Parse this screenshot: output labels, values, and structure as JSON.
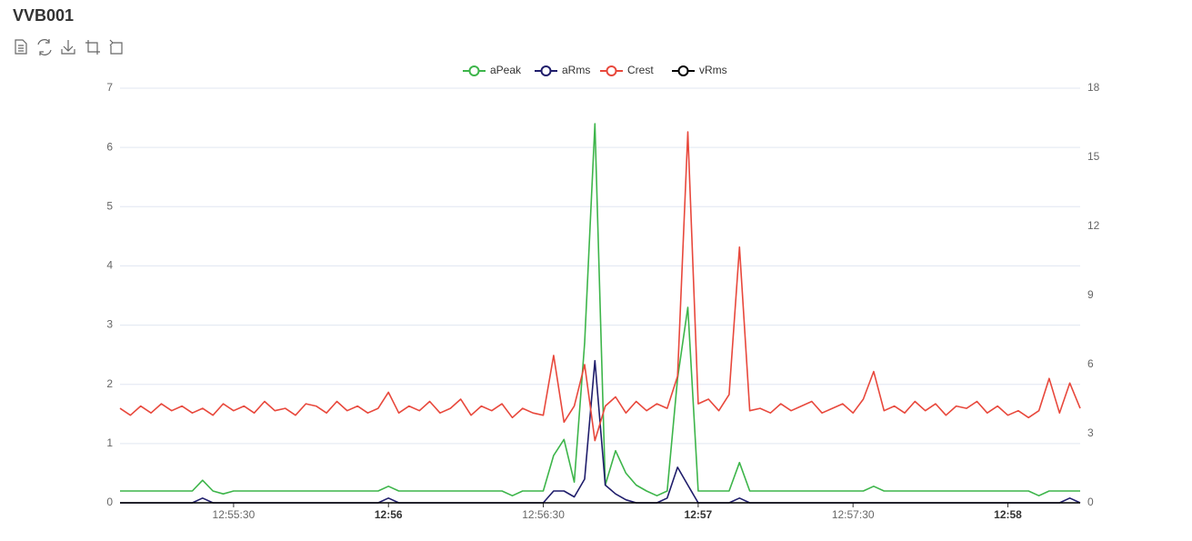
{
  "chart_data": {
    "type": "line",
    "title": "VVB001",
    "x": [
      "12:55:08",
      "12:55:10",
      "12:55:12",
      "12:55:14",
      "12:55:16",
      "12:55:18",
      "12:55:20",
      "12:55:22",
      "12:55:24",
      "12:55:26",
      "12:55:28",
      "12:55:30",
      "12:55:32",
      "12:55:34",
      "12:55:36",
      "12:55:38",
      "12:55:40",
      "12:55:42",
      "12:55:44",
      "12:55:46",
      "12:55:48",
      "12:55:50",
      "12:55:52",
      "12:55:54",
      "12:55:56",
      "12:55:58",
      "12:56:00",
      "12:56:02",
      "12:56:04",
      "12:56:06",
      "12:56:08",
      "12:56:10",
      "12:56:12",
      "12:56:14",
      "12:56:16",
      "12:56:18",
      "12:56:20",
      "12:56:22",
      "12:56:24",
      "12:56:26",
      "12:56:28",
      "12:56:30",
      "12:56:32",
      "12:56:34",
      "12:56:36",
      "12:56:38",
      "12:56:40",
      "12:56:42",
      "12:56:44",
      "12:56:46",
      "12:56:48",
      "12:56:50",
      "12:56:52",
      "12:56:54",
      "12:56:56",
      "12:56:58",
      "12:57:00",
      "12:57:02",
      "12:57:04",
      "12:57:06",
      "12:57:08",
      "12:57:10",
      "12:57:12",
      "12:57:14",
      "12:57:16",
      "12:57:18",
      "12:57:20",
      "12:57:22",
      "12:57:24",
      "12:57:26",
      "12:57:28",
      "12:57:30",
      "12:57:32",
      "12:57:34",
      "12:57:36",
      "12:57:38",
      "12:57:40",
      "12:57:42",
      "12:57:44",
      "12:57:46",
      "12:57:48",
      "12:57:50",
      "12:57:52",
      "12:57:54",
      "12:57:56",
      "12:57:58",
      "12:58:00",
      "12:58:02",
      "12:58:04",
      "12:58:06",
      "12:58:08",
      "12:58:10",
      "12:58:12",
      "12:58:14"
    ],
    "series": [
      {
        "name": "aPeak",
        "color": "#3db54a",
        "axis": "y",
        "values": [
          0.2,
          0.2,
          0.2,
          0.2,
          0.2,
          0.2,
          0.2,
          0.2,
          0.38,
          0.2,
          0.15,
          0.2,
          0.2,
          0.2,
          0.2,
          0.2,
          0.2,
          0.2,
          0.2,
          0.2,
          0.2,
          0.2,
          0.2,
          0.2,
          0.2,
          0.2,
          0.28,
          0.2,
          0.2,
          0.2,
          0.2,
          0.2,
          0.2,
          0.2,
          0.2,
          0.2,
          0.2,
          0.2,
          0.12,
          0.2,
          0.2,
          0.2,
          0.8,
          1.07,
          0.35,
          2.7,
          6.4,
          0.3,
          0.88,
          0.5,
          0.3,
          0.2,
          0.12,
          0.2,
          2.1,
          3.3,
          0.2,
          0.2,
          0.2,
          0.2,
          0.68,
          0.2,
          0.2,
          0.2,
          0.2,
          0.2,
          0.2,
          0.2,
          0.2,
          0.2,
          0.2,
          0.2,
          0.2,
          0.28,
          0.2,
          0.2,
          0.2,
          0.2,
          0.2,
          0.2,
          0.2,
          0.2,
          0.2,
          0.2,
          0.2,
          0.2,
          0.2,
          0.2,
          0.2,
          0.12,
          0.2,
          0.2,
          0.2,
          0.2
        ]
      },
      {
        "name": "aRms",
        "color": "#1f1d6b",
        "axis": "y",
        "values": [
          0,
          0,
          0,
          0,
          0,
          0,
          0,
          0,
          0.08,
          0,
          0,
          0,
          0,
          0,
          0,
          0,
          0,
          0,
          0,
          0,
          0,
          0,
          0,
          0,
          0,
          0,
          0.08,
          0,
          0,
          0,
          0,
          0,
          0,
          0,
          0,
          0,
          0,
          0,
          0,
          0,
          0,
          0,
          0.2,
          0.2,
          0.1,
          0.4,
          2.4,
          0.3,
          0.15,
          0.05,
          0,
          0,
          0,
          0.08,
          0.6,
          0.3,
          0,
          0,
          0,
          0,
          0.08,
          0,
          0,
          0,
          0,
          0,
          0,
          0,
          0,
          0,
          0,
          0,
          0,
          0,
          0,
          0,
          0,
          0,
          0,
          0,
          0,
          0,
          0,
          0,
          0,
          0,
          0,
          0,
          0,
          0,
          0,
          0,
          0.08,
          0
        ]
      },
      {
        "name": "Crest",
        "color": "#e8483c",
        "axis": "y2",
        "values": [
          4.1,
          3.8,
          4.2,
          3.9,
          4.3,
          4.0,
          4.2,
          3.9,
          4.1,
          3.8,
          4.3,
          4.0,
          4.2,
          3.9,
          4.4,
          4.0,
          4.1,
          3.8,
          4.3,
          4.2,
          3.9,
          4.4,
          4.0,
          4.2,
          3.9,
          4.1,
          4.8,
          3.9,
          4.2,
          4.0,
          4.4,
          3.9,
          4.1,
          4.5,
          3.8,
          4.2,
          4.0,
          4.3,
          3.7,
          4.1,
          3.9,
          3.8,
          6.4,
          3.5,
          4.2,
          6.0,
          2.7,
          4.2,
          4.6,
          3.9,
          4.4,
          4.0,
          4.3,
          4.1,
          5.5,
          16.1,
          4.3,
          4.5,
          4.0,
          4.7,
          11.1,
          4.0,
          4.1,
          3.9,
          4.3,
          4.0,
          4.2,
          4.4,
          3.9,
          4.1,
          4.3,
          3.9,
          4.5,
          5.7,
          4.0,
          4.2,
          3.9,
          4.4,
          4.0,
          4.3,
          3.8,
          4.2,
          4.1,
          4.4,
          3.9,
          4.2,
          3.8,
          4.0,
          3.7,
          4.0,
          5.4,
          3.9,
          5.2,
          4.1
        ]
      },
      {
        "name": "vRms",
        "color": "#000000",
        "axis": "y",
        "values": [
          0,
          0,
          0,
          0,
          0,
          0,
          0,
          0,
          0,
          0,
          0,
          0,
          0,
          0,
          0,
          0,
          0,
          0,
          0,
          0,
          0,
          0,
          0,
          0,
          0,
          0,
          0,
          0,
          0,
          0,
          0,
          0,
          0,
          0,
          0,
          0,
          0,
          0,
          0,
          0,
          0,
          0,
          0,
          0,
          0,
          0,
          0,
          0,
          0,
          0,
          0,
          0,
          0,
          0,
          0,
          0,
          0,
          0,
          0,
          0,
          0,
          0,
          0,
          0,
          0,
          0,
          0,
          0,
          0,
          0,
          0,
          0,
          0,
          0,
          0,
          0,
          0,
          0,
          0,
          0,
          0,
          0,
          0,
          0,
          0,
          0,
          0,
          0,
          0,
          0,
          0,
          0,
          0,
          0
        ]
      }
    ],
    "xlim": [
      "12:55:08",
      "12:58:14"
    ],
    "xticks": [
      "12:55:30",
      "12:56",
      "12:56:30",
      "12:57",
      "12:57:30",
      "12:58"
    ],
    "ylim": [
      0,
      7
    ],
    "yticks": [
      0,
      1,
      2,
      3,
      4,
      5,
      6,
      7
    ],
    "y2lim": [
      0,
      18
    ],
    "y2ticks": [
      0,
      3,
      6,
      9,
      12,
      15,
      18
    ],
    "grid": true
  }
}
